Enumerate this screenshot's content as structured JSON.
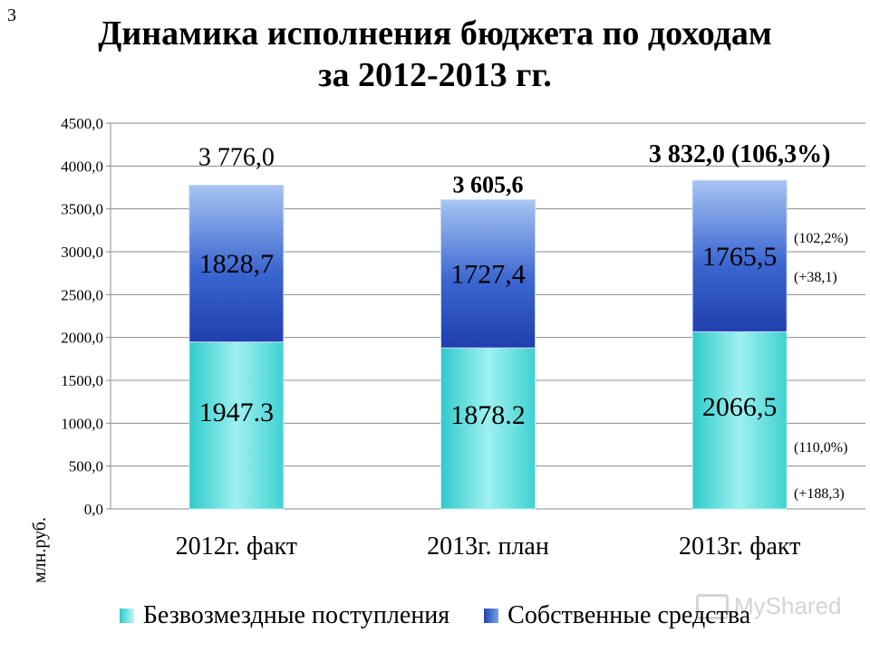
{
  "slide_number": "3",
  "title": {
    "line1": "Динамика исполнения бюджета по доходам",
    "line2": "за 2012-2013 гг."
  },
  "colors": {
    "cyan_segment": "#4fd8d8",
    "blue_segment": "#2f58c7",
    "grid": "#8c8c8c"
  },
  "chart_data": {
    "type": "bar",
    "stacked": true,
    "categories": [
      "2012г. факт",
      "2013г. план",
      "2013г. факт"
    ],
    "series": [
      {
        "name": "Безвозмездные поступления",
        "values": [
          1947.3,
          1878.2,
          2066.5
        ],
        "labels": [
          "1947.3",
          "1878.2",
          "2066,5"
        ]
      },
      {
        "name": "Собственные средства",
        "values": [
          1828.7,
          1727.4,
          1765.5
        ],
        "labels": [
          "1828,7",
          "1727,4",
          "1765,5"
        ]
      }
    ],
    "totals": [
      "3 776,0",
      "3 605,6",
      "3 832,0 (106,3%)"
    ],
    "yticks": [
      "0,0",
      "500,0",
      "1000,0",
      "1500,0",
      "2000,0",
      "2500,0",
      "3000,0",
      "3500,0",
      "4000,0",
      "4500,0"
    ],
    "ylim": [
      0,
      4500
    ],
    "ylabel": "млн.руб.",
    "grid": true,
    "legend_position": "bottom",
    "annotations": {
      "own_percent": "(102,2%)",
      "own_change": "(+38,1)",
      "gratuitous_percent": "(110,0%)",
      "gratuitous_change": "(+188,3)"
    }
  },
  "watermark": "MyShared"
}
